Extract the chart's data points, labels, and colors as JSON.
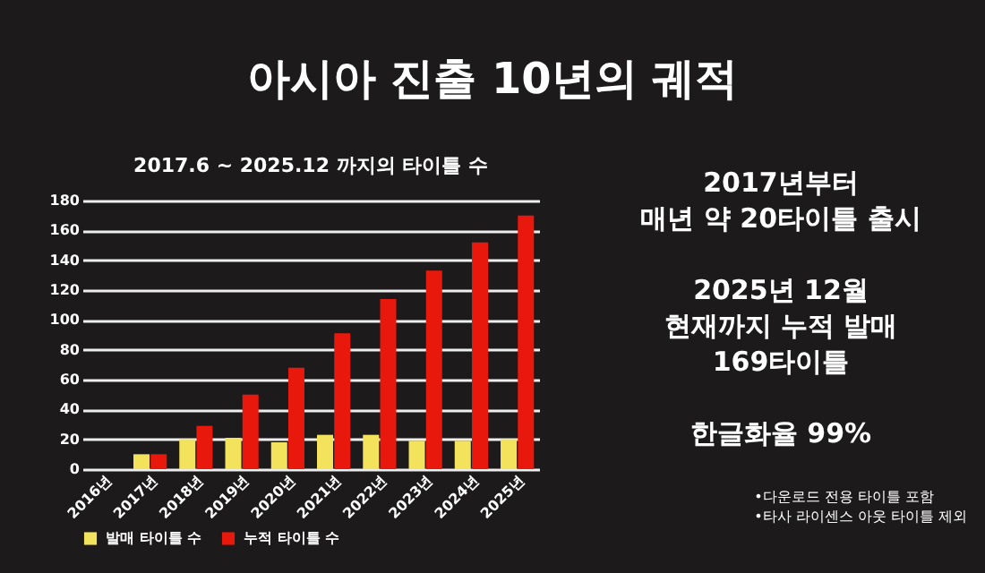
{
  "chart_data": {
    "type": "bar",
    "title": "아시아 진출 10년의 궤적",
    "subtitle": "2017.6 ~ 2025.12 까지의 타이틀 수",
    "categories": [
      "2016년",
      "2017년",
      "2018년",
      "2019년",
      "2020년",
      "2021년",
      "2022년",
      "2023년",
      "2024년",
      "2025년"
    ],
    "series": [
      {
        "name": "발매 타이틀 수",
        "color": "#f2e25c",
        "values": [
          0,
          10,
          20,
          21,
          18,
          23,
          23,
          19,
          19,
          20
        ]
      },
      {
        "name": "누적 타이틀 수",
        "color": "#e8180c",
        "values": [
          0,
          10,
          29,
          50,
          68,
          91,
          114,
          133,
          152,
          170
        ]
      }
    ],
    "ylim": [
      0,
      180
    ],
    "yticks": [
      0,
      20,
      40,
      60,
      80,
      100,
      120,
      140,
      160,
      180
    ],
    "grid": "y",
    "legend": "bottom",
    "annotations": [
      "2017년부터\n매년 약 20타이틀 출시",
      "2025년 12월\n현재까지 누적 발매\n169타이틀",
      "한글화율 99%",
      "•다운로드 전용 타이틀 포함\n•타사 라이센스 아웃 타이틀 제외"
    ]
  }
}
